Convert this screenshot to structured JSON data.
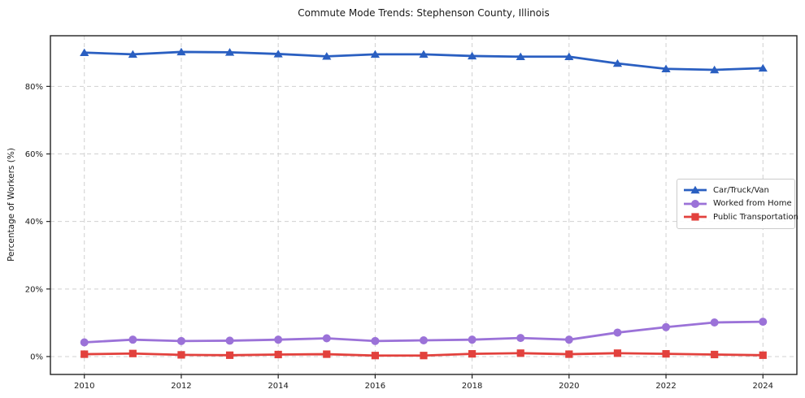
{
  "chart_data": {
    "type": "line",
    "title": "Commute Mode Trends: Stephenson County, Illinois",
    "xlabel": "",
    "ylabel": "Percentage of Workers (%)",
    "x": [
      2010,
      2011,
      2012,
      2013,
      2014,
      2015,
      2016,
      2017,
      2018,
      2019,
      2020,
      2021,
      2022,
      2023,
      2024
    ],
    "series": [
      {
        "name": "Car/Truck/Van",
        "marker": "triangle",
        "color": "#2a5fc1",
        "values": [
          90.0,
          89.5,
          90.2,
          90.1,
          89.6,
          88.9,
          89.5,
          89.5,
          89.0,
          88.8,
          88.8,
          86.8,
          85.2,
          84.9,
          85.4
        ]
      },
      {
        "name": "Worked from Home",
        "marker": "circle",
        "color": "#9b72d8",
        "values": [
          4.2,
          5.0,
          4.6,
          4.7,
          5.0,
          5.4,
          4.6,
          4.8,
          5.0,
          5.5,
          5.0,
          7.1,
          8.7,
          10.1,
          10.3
        ]
      },
      {
        "name": "Public Transportation",
        "marker": "square",
        "color": "#e2413d",
        "values": [
          0.7,
          0.9,
          0.5,
          0.4,
          0.6,
          0.7,
          0.3,
          0.3,
          0.8,
          1.0,
          0.7,
          1.0,
          0.8,
          0.6,
          0.4
        ]
      }
    ],
    "xticks": [
      2010,
      2012,
      2014,
      2016,
      2018,
      2020,
      2022,
      2024
    ],
    "yticks": [
      {
        "value": 0,
        "label": "0%"
      },
      {
        "value": 20,
        "label": "20%"
      },
      {
        "value": 40,
        "label": "40%"
      },
      {
        "value": 60,
        "label": "60%"
      },
      {
        "value": 80,
        "label": "80%"
      }
    ],
    "xlim": [
      2009.3,
      2024.7
    ],
    "ylim": [
      -5.3,
      95.0
    ],
    "grid": true,
    "grid_color": "#d0d0d0",
    "spine_color": "#222222",
    "tick_label_color": "#1a1a1a",
    "legend_position": "center right"
  }
}
